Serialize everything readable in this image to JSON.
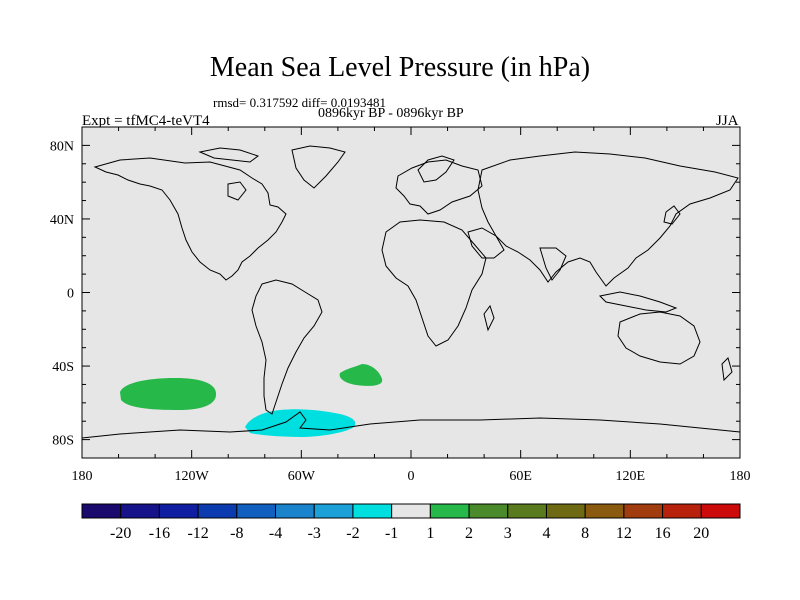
{
  "title": "Mean Sea Level Pressure (in hPa)",
  "stats_text": "rmsd= 0.317592 diff= 0.0193481",
  "period": "0896kyr BP - 0896kyr BP",
  "experiment": "Expt = tfMC4-teVT4",
  "season": "JJA",
  "map": {
    "background_color": "#e6e6e6",
    "coast_color": "#000000",
    "lat_labels": [
      "80N",
      "40N",
      "0",
      "40S",
      "80S"
    ],
    "lon_labels": [
      "180",
      "120W",
      "60W",
      "0",
      "60E",
      "120E",
      "180"
    ]
  },
  "anomalies": [
    {
      "name": "south-pacific-positive",
      "level": "1 to 2",
      "color": "#27b84a"
    },
    {
      "name": "south-atlantic-positive",
      "level": "1 to 2",
      "color": "#27b84a"
    },
    {
      "name": "antarctic-peninsula-negative",
      "level": "-2 to -1",
      "color": "#00dfe0"
    }
  ],
  "colorbar": {
    "colors": [
      "#1a0a6e",
      "#15128a",
      "#0f1ea0",
      "#0c3bb0",
      "#1160c0",
      "#1a83cc",
      "#1ba0d8",
      "#00dfe0",
      "#e6e6e6",
      "#27b84a",
      "#4a8a2a",
      "#5a7a1e",
      "#6e6a14",
      "#8a5a10",
      "#a03c0e",
      "#b8220c",
      "#cc0a0a"
    ],
    "labels": [
      "-20",
      "-16",
      "-12",
      "-8",
      "-4",
      "-3",
      "-2",
      "-1",
      "1",
      "2",
      "3",
      "4",
      "8",
      "12",
      "16",
      "20"
    ]
  }
}
